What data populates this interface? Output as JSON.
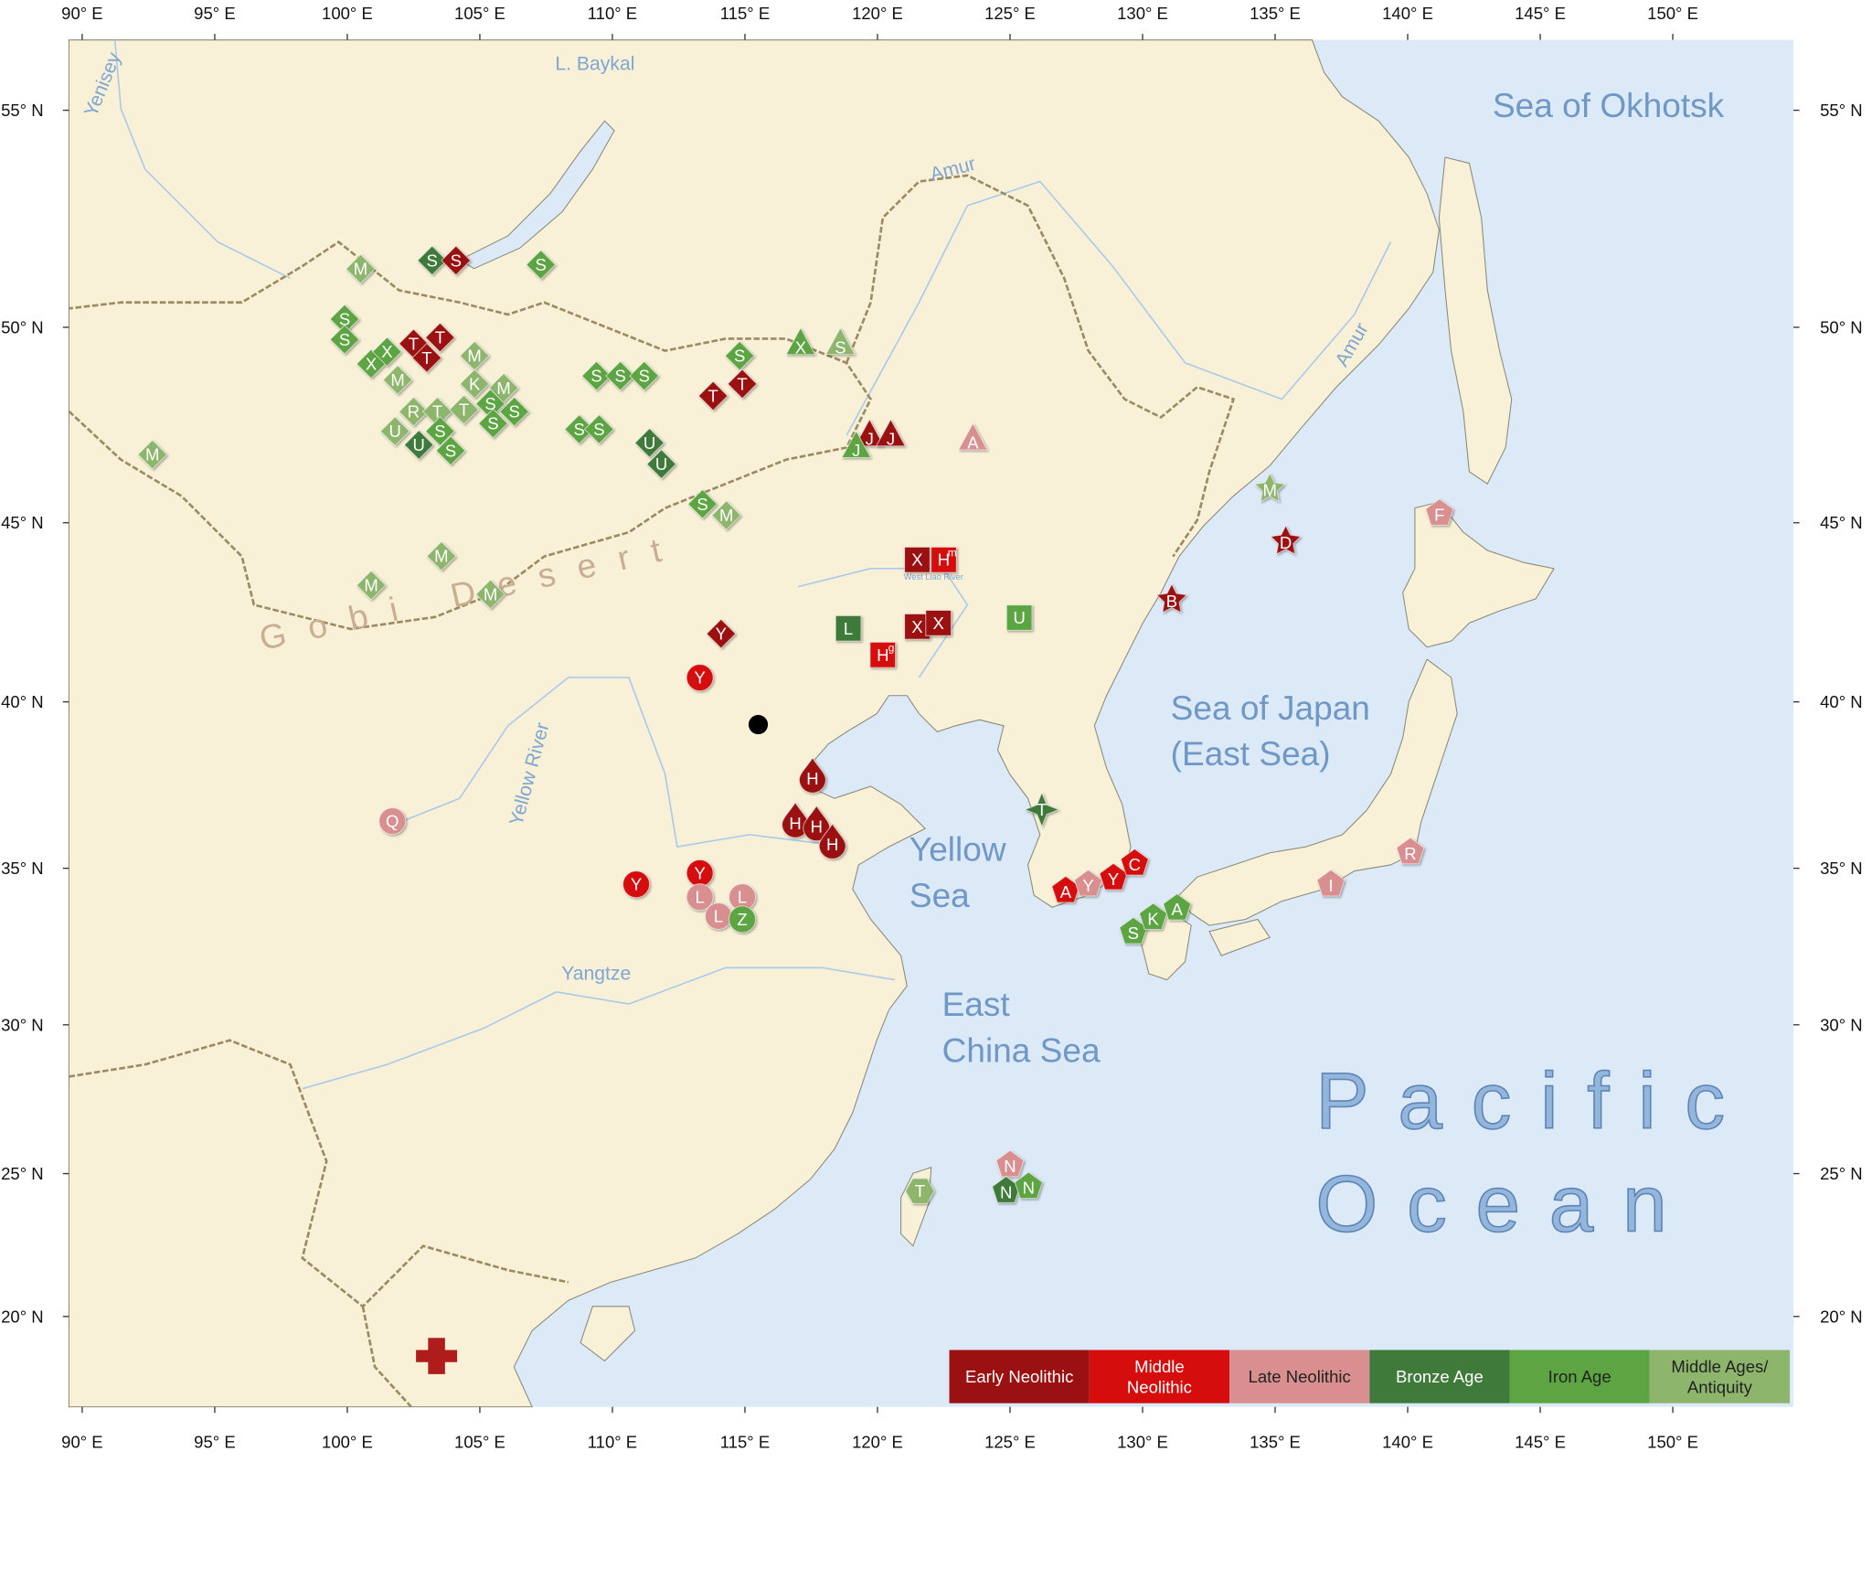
{
  "map": {
    "xlim": [
      89.5,
      154.55
    ],
    "ylim": [
      16.75,
      56.5
    ],
    "xticks": [
      {
        "value": 90,
        "label": "90° E"
      },
      {
        "value": 95,
        "label": "95° E"
      },
      {
        "value": 100,
        "label": "100° E"
      },
      {
        "value": 105,
        "label": "105° E"
      },
      {
        "value": 110,
        "label": "110° E"
      },
      {
        "value": 115,
        "label": "115° E"
      },
      {
        "value": 120,
        "label": "120° E"
      },
      {
        "value": 125,
        "label": "125° E"
      },
      {
        "value": 130,
        "label": "130° E"
      },
      {
        "value": 135,
        "label": "135° E"
      },
      {
        "value": 140,
        "label": "140° E"
      },
      {
        "value": 145,
        "label": "145° E"
      },
      {
        "value": 150,
        "label": "150° E"
      }
    ],
    "yticks": [
      {
        "value": 20,
        "label": "20° N"
      },
      {
        "value": 25,
        "label": "25° N"
      },
      {
        "value": 30,
        "label": "30° N"
      },
      {
        "value": 35,
        "label": "35° N"
      },
      {
        "value": 40,
        "label": "40° N"
      },
      {
        "value": 45,
        "label": "45° N"
      },
      {
        "value": 50,
        "label": "50° N"
      },
      {
        "value": 55,
        "label": "55° N"
      }
    ],
    "labels": {
      "sea_of_okhotsk": "Sea of Okhotsk",
      "sea_of_japan": [
        "Sea of Japan",
        "(East Sea)"
      ],
      "yellow_sea": [
        "Yellow",
        "Sea"
      ],
      "east_china_sea": [
        "East",
        "China Sea"
      ],
      "pacific_ocean": [
        "Pacific",
        "Ocean"
      ],
      "gobi_desert": "Gobi Desert",
      "baykal": "L. Baykal",
      "yenisey": "Yenisey",
      "amur": "Amur",
      "yellow_river": "Yellow River",
      "yangtze": "Yangtze",
      "west_liao": "West Liao River"
    },
    "legend": [
      {
        "label": [
          "Early Neolithic"
        ],
        "color": "#9b1111",
        "text_color": "#ffffff"
      },
      {
        "label": [
          "Middle",
          "Neolithic"
        ],
        "color": "#d50d0d",
        "text_color": "#ffffff"
      },
      {
        "label": [
          "Late Neolithic"
        ],
        "color": "#d98f8f",
        "text_color": "#222222"
      },
      {
        "label": [
          "Bronze Age"
        ],
        "color": "#3f7a3b",
        "text_color": "#ffffff"
      },
      {
        "label": [
          "Iron Age"
        ],
        "color": "#5da542",
        "text_color": "#222222"
      },
      {
        "label": [
          "Middle Ages/",
          "Antiquity"
        ],
        "color": "#8db66c",
        "text_color": "#222222"
      }
    ],
    "markers": [
      {
        "label": "S",
        "lon": 103.2,
        "lat": 51.6,
        "period": 3,
        "shape": "diamond"
      },
      {
        "label": "S",
        "lon": 104.1,
        "lat": 51.6,
        "period": 0,
        "shape": "diamond"
      },
      {
        "label": "M",
        "lon": 100.5,
        "lat": 51.4,
        "period": 5,
        "shape": "diamond"
      },
      {
        "label": "S",
        "lon": 107.3,
        "lat": 51.5,
        "period": 4,
        "shape": "diamond"
      },
      {
        "label": "S",
        "lon": 99.9,
        "lat": 50.2,
        "period": 4,
        "shape": "diamond"
      },
      {
        "label": "S",
        "lon": 99.9,
        "lat": 49.7,
        "period": 4,
        "shape": "diamond"
      },
      {
        "label": "T",
        "lon": 102.5,
        "lat": 49.6,
        "period": 0,
        "shape": "diamond"
      },
      {
        "label": "T",
        "lon": 103.5,
        "lat": 49.75,
        "period": 0,
        "shape": "diamond"
      },
      {
        "label": "T",
        "lon": 103.0,
        "lat": 49.25,
        "period": 0,
        "shape": "diamond"
      },
      {
        "label": "X",
        "lon": 100.9,
        "lat": 49.1,
        "period": 4,
        "shape": "diamond"
      },
      {
        "label": "X",
        "lon": 101.5,
        "lat": 49.4,
        "period": 4,
        "shape": "diamond"
      },
      {
        "label": "M",
        "lon": 101.9,
        "lat": 48.7,
        "period": 5,
        "shape": "diamond"
      },
      {
        "label": "M",
        "lon": 104.8,
        "lat": 49.3,
        "period": 5,
        "shape": "diamond"
      },
      {
        "label": "S",
        "lon": 109.4,
        "lat": 48.8,
        "period": 4,
        "shape": "diamond"
      },
      {
        "label": "S",
        "lon": 110.3,
        "lat": 48.8,
        "period": 4,
        "shape": "diamond"
      },
      {
        "label": "S",
        "lon": 111.2,
        "lat": 48.8,
        "period": 4,
        "shape": "diamond"
      },
      {
        "label": "S",
        "lon": 114.8,
        "lat": 49.3,
        "period": 4,
        "shape": "diamond"
      },
      {
        "label": "X",
        "lon": 117.1,
        "lat": 49.6,
        "period": 4,
        "shape": "triangle"
      },
      {
        "label": "S",
        "lon": 118.6,
        "lat": 49.6,
        "period": 5,
        "shape": "triangle"
      },
      {
        "label": "T",
        "lon": 113.8,
        "lat": 48.3,
        "period": 0,
        "shape": "diamond"
      },
      {
        "label": "T",
        "lon": 114.9,
        "lat": 48.6,
        "period": 0,
        "shape": "diamond"
      },
      {
        "label": "K",
        "lon": 104.8,
        "lat": 48.6,
        "period": 5,
        "shape": "diamond"
      },
      {
        "label": "M",
        "lon": 105.9,
        "lat": 48.5,
        "period": 5,
        "shape": "diamond"
      },
      {
        "label": "R",
        "lon": 102.5,
        "lat": 47.9,
        "period": 5,
        "shape": "diamond"
      },
      {
        "label": "T",
        "lon": 103.4,
        "lat": 47.9,
        "period": 5,
        "shape": "diamond"
      },
      {
        "label": "T",
        "lon": 104.4,
        "lat": 47.95,
        "period": 5,
        "shape": "diamond"
      },
      {
        "label": "S",
        "lon": 105.4,
        "lat": 48.1,
        "period": 4,
        "shape": "diamond"
      },
      {
        "label": "S",
        "lon": 106.3,
        "lat": 47.9,
        "period": 4,
        "shape": "diamond"
      },
      {
        "label": "S",
        "lon": 105.5,
        "lat": 47.6,
        "period": 4,
        "shape": "diamond"
      },
      {
        "label": "U",
        "lon": 101.8,
        "lat": 47.4,
        "period": 5,
        "shape": "diamond"
      },
      {
        "label": "S",
        "lon": 103.5,
        "lat": 47.4,
        "period": 4,
        "shape": "diamond"
      },
      {
        "label": "U",
        "lon": 102.7,
        "lat": 47.05,
        "period": 3,
        "shape": "diamond"
      },
      {
        "label": "S",
        "lon": 103.9,
        "lat": 46.9,
        "period": 4,
        "shape": "diamond"
      },
      {
        "label": "S",
        "lon": 108.75,
        "lat": 47.45,
        "period": 4,
        "shape": "diamond"
      },
      {
        "label": "S",
        "lon": 109.5,
        "lat": 47.45,
        "period": 4,
        "shape": "diamond"
      },
      {
        "label": "U",
        "lon": 111.4,
        "lat": 47.1,
        "period": 3,
        "shape": "diamond"
      },
      {
        "label": "U",
        "lon": 111.85,
        "lat": 46.55,
        "period": 3,
        "shape": "diamond"
      },
      {
        "label": "M",
        "lon": 92.65,
        "lat": 46.8,
        "period": 5,
        "shape": "diamond"
      },
      {
        "label": "J",
        "lon": 119.7,
        "lat": 47.3,
        "period": 0,
        "shape": "triangle"
      },
      {
        "label": "J",
        "lon": 120.5,
        "lat": 47.3,
        "period": 0,
        "shape": "triangle"
      },
      {
        "label": "J",
        "lon": 119.2,
        "lat": 47.0,
        "period": 4,
        "shape": "triangle"
      },
      {
        "label": "A",
        "lon": 123.6,
        "lat": 47.2,
        "period": 2,
        "shape": "triangle"
      },
      {
        "label": "S",
        "lon": 113.4,
        "lat": 45.5,
        "period": 4,
        "shape": "diamond"
      },
      {
        "label": "M",
        "lon": 114.3,
        "lat": 45.2,
        "period": 5,
        "shape": "diamond"
      },
      {
        "label": "M",
        "lon": 103.55,
        "lat": 44.1,
        "period": 5,
        "shape": "diamond"
      },
      {
        "label": "M",
        "lon": 100.9,
        "lat": 43.3,
        "period": 5,
        "shape": "diamond"
      },
      {
        "label": "M",
        "lon": 105.4,
        "lat": 43.05,
        "period": 5,
        "shape": "diamond"
      },
      {
        "label": "X",
        "lon": 121.5,
        "lat": 44.0,
        "period": 0,
        "shape": "square"
      },
      {
        "label": "H",
        "sup": "m",
        "lon": 122.5,
        "lat": 44.0,
        "period": 1,
        "shape": "square"
      },
      {
        "label": "L",
        "lon": 118.9,
        "lat": 42.1,
        "period": 3,
        "shape": "square"
      },
      {
        "label": "X",
        "lon": 121.5,
        "lat": 42.15,
        "period": 0,
        "shape": "square"
      },
      {
        "label": "X",
        "lon": 122.3,
        "lat": 42.25,
        "period": 0,
        "shape": "square"
      },
      {
        "label": "H",
        "sup": "g",
        "lon": 120.2,
        "lat": 41.35,
        "period": 1,
        "shape": "square"
      },
      {
        "label": "U",
        "lon": 125.35,
        "lat": 42.4,
        "period": 4,
        "shape": "square"
      },
      {
        "label": "Y",
        "lon": 114.1,
        "lat": 41.95,
        "period": 0,
        "shape": "diamond"
      },
      {
        "label": "Y",
        "lon": 113.3,
        "lat": 40.7,
        "period": 1,
        "shape": "circle"
      },
      {
        "label": "H",
        "lon": 117.55,
        "lat": 37.85,
        "period": 0,
        "shape": "drop"
      },
      {
        "label": "H",
        "lon": 116.9,
        "lat": 36.5,
        "period": 0,
        "shape": "drop"
      },
      {
        "label": "H",
        "lon": 117.7,
        "lat": 36.4,
        "period": 0,
        "shape": "drop"
      },
      {
        "label": "H",
        "lon": 118.3,
        "lat": 35.85,
        "period": 0,
        "shape": "drop"
      },
      {
        "label": "Q",
        "lon": 101.7,
        "lat": 36.45,
        "period": 2,
        "shape": "circle"
      },
      {
        "label": "Y",
        "lon": 110.9,
        "lat": 34.5,
        "period": 1,
        "shape": "circle"
      },
      {
        "label": "Y",
        "lon": 113.3,
        "lat": 34.85,
        "period": 1,
        "shape": "circle"
      },
      {
        "label": "L",
        "lon": 113.3,
        "lat": 34.1,
        "period": 2,
        "shape": "circle"
      },
      {
        "label": "L",
        "lon": 114.0,
        "lat": 33.5,
        "period": 2,
        "shape": "circle"
      },
      {
        "label": "L",
        "lon": 114.9,
        "lat": 34.1,
        "period": 2,
        "shape": "circle"
      },
      {
        "label": "Z",
        "lon": 114.9,
        "lat": 33.4,
        "period": 4,
        "shape": "circle"
      },
      {
        "label": "T",
        "lon": 126.2,
        "lat": 36.8,
        "period": 3,
        "shape": "star4"
      },
      {
        "label": "A",
        "lon": 127.1,
        "lat": 34.3,
        "period": 1,
        "shape": "pentagon"
      },
      {
        "label": "Y",
        "lon": 127.95,
        "lat": 34.5,
        "period": 2,
        "shape": "pentagon"
      },
      {
        "label": "Y",
        "lon": 128.9,
        "lat": 34.7,
        "period": 1,
        "shape": "pentagon"
      },
      {
        "label": "C",
        "lon": 129.7,
        "lat": 35.15,
        "period": 1,
        "shape": "pentagon"
      },
      {
        "label": "S",
        "lon": 129.65,
        "lat": 33.0,
        "period": 4,
        "shape": "pentagon"
      },
      {
        "label": "K",
        "lon": 130.4,
        "lat": 33.45,
        "period": 4,
        "shape": "pentagon"
      },
      {
        "label": "A",
        "lon": 131.3,
        "lat": 33.75,
        "period": 4,
        "shape": "pentagon"
      },
      {
        "label": "M",
        "lon": 134.8,
        "lat": 45.9,
        "period": 5,
        "shape": "star"
      },
      {
        "label": "D",
        "lon": 135.4,
        "lat": 44.5,
        "period": 0,
        "shape": "star"
      },
      {
        "label": "B",
        "lon": 131.1,
        "lat": 42.9,
        "period": 0,
        "shape": "star"
      },
      {
        "label": "F",
        "lon": 141.2,
        "lat": 45.25,
        "period": 2,
        "shape": "pentagon"
      },
      {
        "label": "I",
        "lon": 137.1,
        "lat": 34.5,
        "period": 2,
        "shape": "pentagon"
      },
      {
        "label": "R",
        "lon": 140.1,
        "lat": 35.5,
        "period": 2,
        "shape": "pentagon"
      },
      {
        "label": "T",
        "lon": 121.6,
        "lat": 24.4,
        "period": 5,
        "shape": "hexagon"
      },
      {
        "label": "N",
        "lon": 125.0,
        "lat": 25.3,
        "period": 2,
        "shape": "pentagon"
      },
      {
        "label": "N",
        "lon": 124.85,
        "lat": 24.4,
        "period": 3,
        "shape": "pentagon"
      },
      {
        "label": "N",
        "lon": 125.7,
        "lat": 24.55,
        "period": 4,
        "shape": "pentagon"
      }
    ]
  }
}
